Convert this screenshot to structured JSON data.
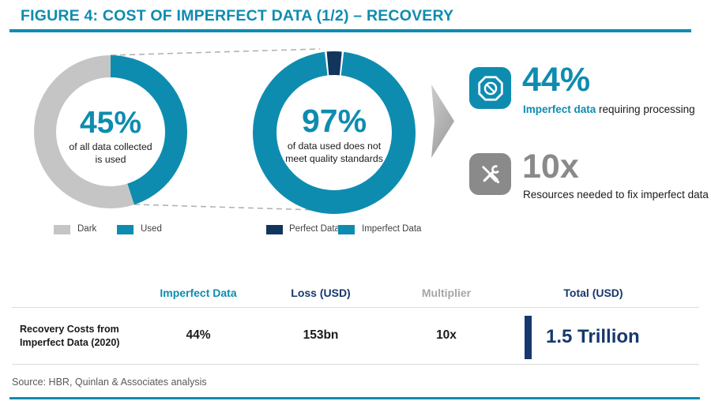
{
  "title": "FIGURE 4: COST OF IMPERFECT DATA (1/2) – RECOVERY",
  "colors": {
    "teal": "#0E8CB0",
    "navy_slice": "#12355E",
    "navy_table": "#17386C",
    "ring_gray": "#C5C5C5",
    "stat_gray": "#8A8A8A",
    "muted_header_gray": "#A6A6A6",
    "source_gray": "#595959",
    "text_dark": "#1A1A1A",
    "white": "#FFFFFF"
  },
  "chart_data": [
    {
      "type": "pie",
      "variant": "donut",
      "center_value": "45%",
      "center_label": "of all data collected\nis used",
      "segments": [
        {
          "label": "Dark",
          "value": 55,
          "color": "#C5C5C5"
        },
        {
          "label": "Used",
          "value": 45,
          "color": "#0E8CB0"
        }
      ],
      "legend_position": "bottom",
      "arc_plan": [
        {
          "color": "#0E8CB0",
          "from": 0,
          "to": 45
        },
        {
          "color": "#C5C5C5",
          "from": 45,
          "to": 100
        }
      ]
    },
    {
      "type": "pie",
      "variant": "donut",
      "center_value": "97%",
      "center_label": "of data used does not\nmeet quality standards",
      "segments": [
        {
          "label": "Perfect Data",
          "value": 3,
          "color": "#12355E"
        },
        {
          "label": "Imperfect Data",
          "value": 97,
          "color": "#0E8CB0"
        }
      ],
      "legend_position": "bottom",
      "arc_plan": [
        {
          "color": "#0E8CB0",
          "from": 1.9,
          "to": 98.1
        },
        {
          "color": "#12355E",
          "from": 98.5,
          "to": 101.5
        }
      ]
    }
  ],
  "stats": [
    {
      "icon": "no-entry-icon",
      "value": "44%",
      "label_highlight": "Imperfect data",
      "label_rest": " requiring processing"
    },
    {
      "icon": "tools-icon",
      "value": "10x",
      "label": "Resources needed to fix imperfect data"
    }
  ],
  "table": {
    "columns": [
      "Imperfect Data",
      "Loss (USD)",
      "Multiplier",
      "Total (USD)"
    ],
    "rows": [
      {
        "label": "Recovery Costs from Imperfect Data (2020)",
        "imperfect_data": "44%",
        "loss_usd": "153bn",
        "multiplier": "10x",
        "total_usd": "1.5 Trillion"
      }
    ]
  },
  "source": "Source: HBR, Quinlan & Associates analysis"
}
